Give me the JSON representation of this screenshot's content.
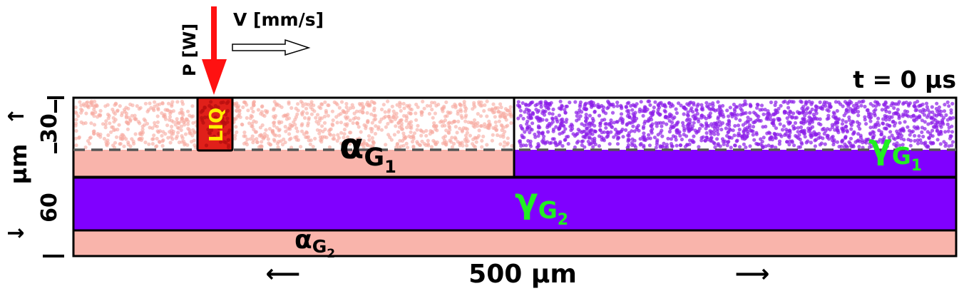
{
  "time_label": "t = 0 µs",
  "laser": {
    "power_label": "P [W]",
    "velocity_label": "V [mm/s]",
    "melt_pool_label": "LIQ"
  },
  "phases": {
    "alpha_g1": {
      "symbol": "α",
      "subscript": "G",
      "sub_sub": "1"
    },
    "gamma_g1": {
      "symbol": "γ",
      "subscript": "G",
      "sub_sub": "1"
    },
    "gamma_g2": {
      "symbol": "γ",
      "subscript": "G",
      "sub_sub": "2"
    },
    "alpha_g2": {
      "symbol": "α",
      "subscript": "G",
      "sub_sub": "2"
    }
  },
  "dimensions": {
    "width_label": "500 µm",
    "width_arrow_left": "⟵",
    "width_arrow_right": "⟶",
    "vertical_unit": "µm",
    "vertical_arrow_up": "↑",
    "vertical_arrow_down": "↓",
    "powder_thickness": "30",
    "layer_thickness": "60"
  },
  "colors": {
    "alpha": "#f9b4ab",
    "gamma": "#8000ff",
    "gamma_label": "#22ee22",
    "laser": "#ff1111",
    "liq_label": "#ffee00",
    "alpha_dots": "#f7a89e",
    "gamma_dots": "#8b1ee8"
  }
}
